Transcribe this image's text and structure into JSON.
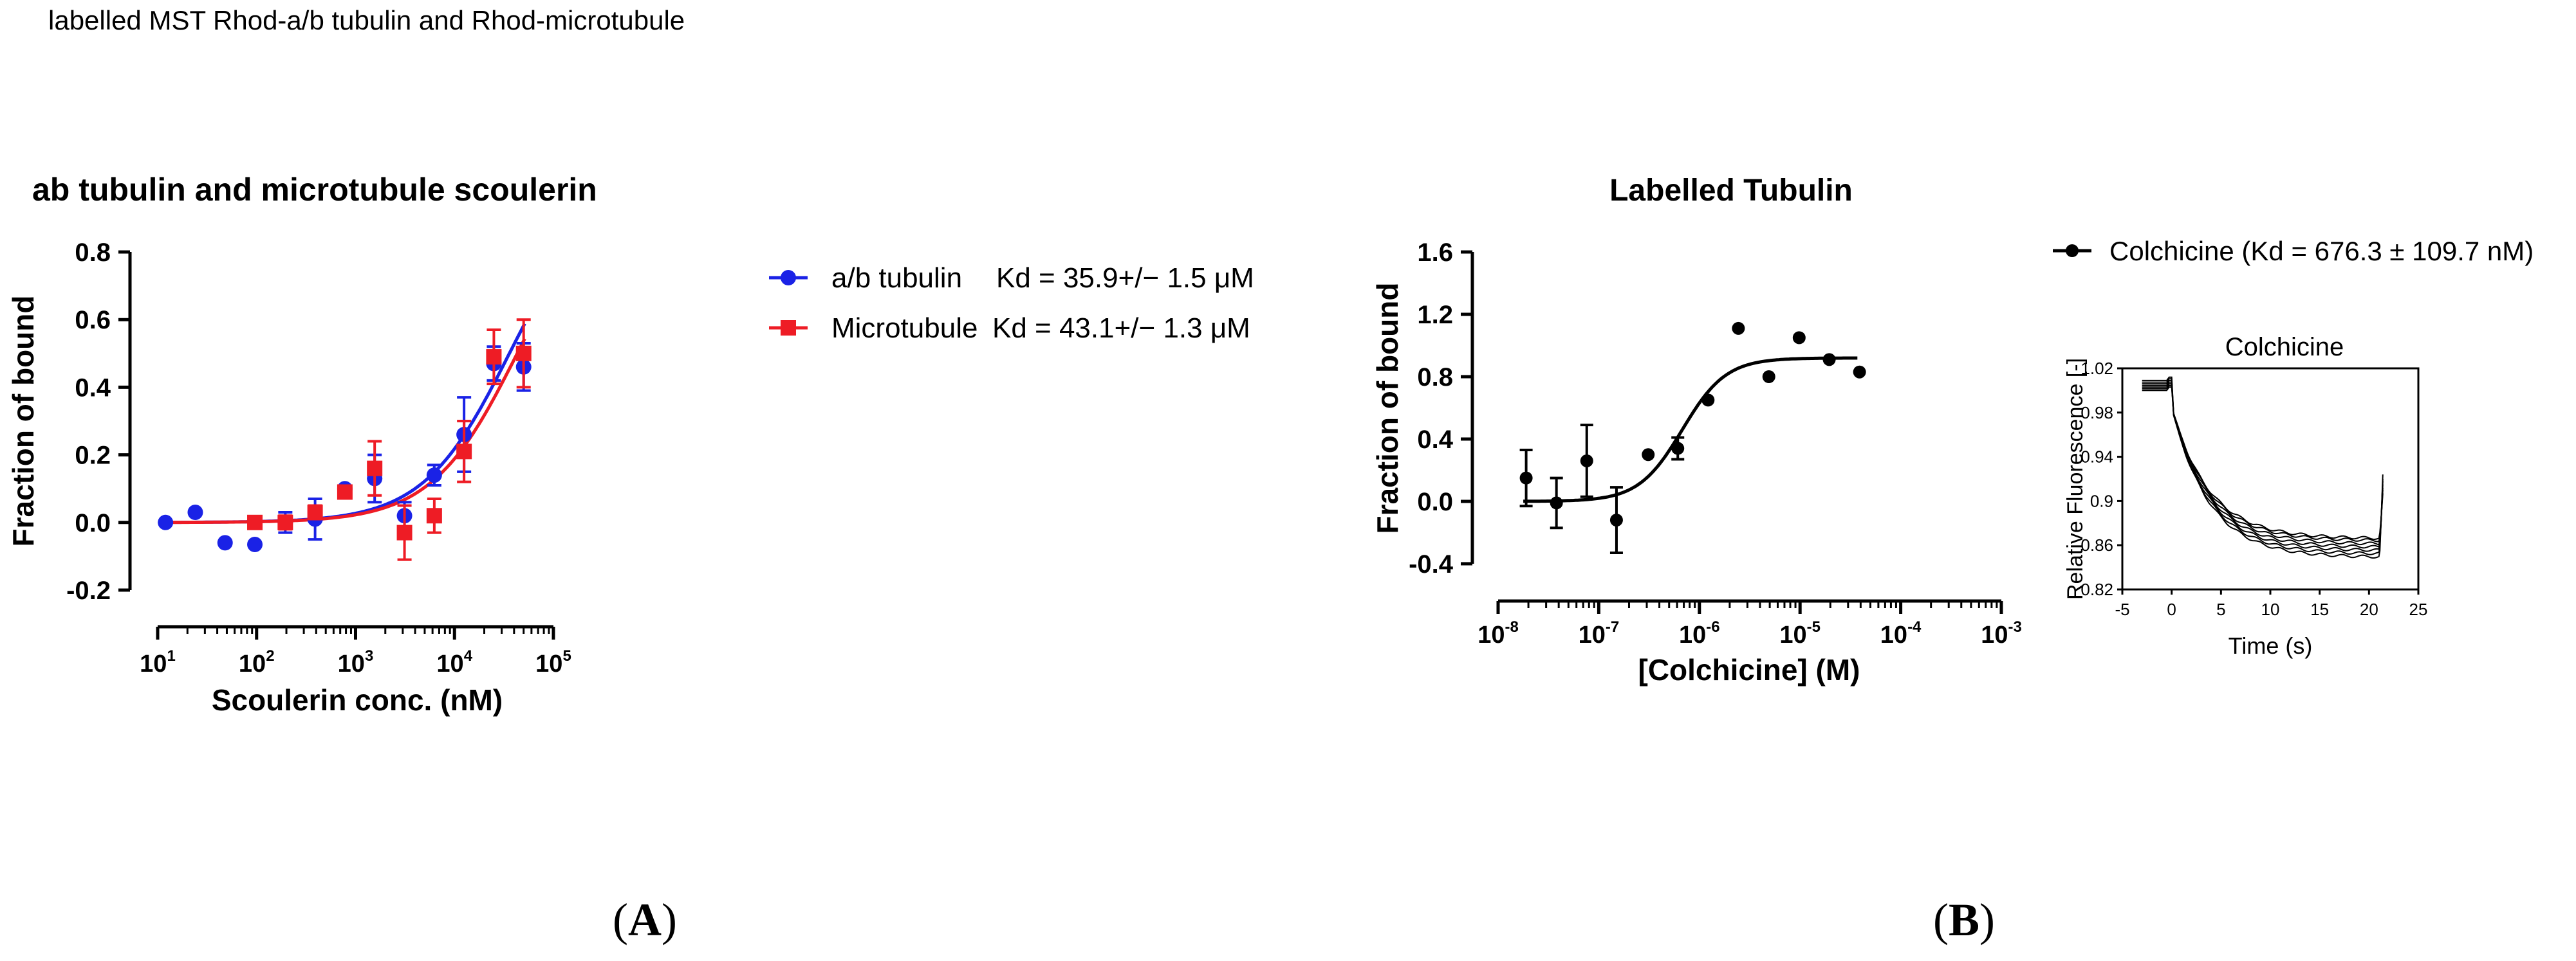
{
  "page": {
    "header": "labelled MST Rhod-a/b tubulin and Rhod-microtubule",
    "panel_a_label": "A",
    "panel_b_label": "B"
  },
  "colors": {
    "tubulin": "#1a22e6",
    "microtubule": "#ee1c25",
    "colchicine": "#000000"
  },
  "chart_data": [
    {
      "type": "scatter",
      "title": "ab tubulin and microtubule scoulerin",
      "xlabel": "Scoulerin conc. (nM)",
      "ylabel": "Fraction of bound",
      "xscale": "log",
      "xlim": [
        10,
        100000
      ],
      "ylim": [
        -0.2,
        0.8
      ],
      "xticks": [
        {
          "v": 10,
          "b": "10",
          "e": "1"
        },
        {
          "v": 100,
          "b": "10",
          "e": "2"
        },
        {
          "v": 1000,
          "b": "10",
          "e": "3"
        },
        {
          "v": 10000,
          "b": "10",
          "e": "4"
        },
        {
          "v": 100000,
          "b": "10",
          "e": "5"
        }
      ],
      "yticks": [
        {
          "v": -0.2,
          "t": "-0.2"
        },
        {
          "v": 0.0,
          "t": "0.0"
        },
        {
          "v": 0.2,
          "t": "0.2"
        },
        {
          "v": 0.4,
          "t": "0.4"
        },
        {
          "v": 0.6,
          "t": "0.6"
        },
        {
          "v": 0.8,
          "t": "0.8"
        }
      ],
      "legend_position": "right",
      "series": [
        {
          "name": "a/b tubulin",
          "kd_label": "Kd = 35.9+/− 1.5 μM",
          "marker": "circle",
          "color": "#1a22e6",
          "points": [
            {
              "x": 12,
              "y": 0.0
            },
            {
              "x": 24,
              "y": 0.03
            },
            {
              "x": 48,
              "y": -0.06
            },
            {
              "x": 96,
              "y": -0.065
            },
            {
              "x": 195,
              "y": 0.0,
              "err": 0.03
            },
            {
              "x": 390,
              "y": 0.01,
              "err": 0.06
            },
            {
              "x": 780,
              "y": 0.1
            },
            {
              "x": 1560,
              "y": 0.13,
              "err": 0.07
            },
            {
              "x": 3125,
              "y": 0.02,
              "err": 0.04
            },
            {
              "x": 6250,
              "y": 0.14,
              "err": 0.03
            },
            {
              "x": 12500,
              "y": 0.26,
              "err": 0.11
            },
            {
              "x": 25000,
              "y": 0.47,
              "err": 0.05
            },
            {
              "x": 50000,
              "y": 0.46,
              "err": 0.07
            }
          ],
          "fit": {
            "kd": 35900
          }
        },
        {
          "name": "Microtubule",
          "kd_label": "Kd = 43.1+/− 1.3 μM",
          "marker": "square",
          "color": "#ee1c25",
          "points": [
            {
              "x": 96,
              "y": 0.0
            },
            {
              "x": 195,
              "y": 0.0,
              "err": 0.02
            },
            {
              "x": 390,
              "y": 0.03,
              "err": 0.02
            },
            {
              "x": 780,
              "y": 0.09
            },
            {
              "x": 1560,
              "y": 0.16,
              "err": 0.08
            },
            {
              "x": 3125,
              "y": -0.03,
              "err": 0.08
            },
            {
              "x": 6250,
              "y": 0.02,
              "err": 0.05
            },
            {
              "x": 12500,
              "y": 0.21,
              "err": 0.09
            },
            {
              "x": 25000,
              "y": 0.49,
              "err": 0.08
            },
            {
              "x": 50000,
              "y": 0.5,
              "err": 0.1
            }
          ],
          "fit": {
            "kd": 43100
          }
        }
      ]
    },
    {
      "type": "scatter",
      "title": "Labelled Tubulin",
      "xlabel": "[Colchicine] (M)",
      "ylabel": "Fraction of bound",
      "xscale": "log",
      "xlim": [
        1e-08,
        0.001
      ],
      "ylim": [
        -0.4,
        1.6
      ],
      "xticks": [
        {
          "v": 1e-08,
          "b": "10",
          "e": "-8"
        },
        {
          "v": 1e-07,
          "b": "10",
          "e": "-7"
        },
        {
          "v": 1e-06,
          "b": "10",
          "e": "-6"
        },
        {
          "v": 1e-05,
          "b": "10",
          "e": "-5"
        },
        {
          "v": 0.0001,
          "b": "10",
          "e": "-4"
        },
        {
          "v": 0.001,
          "b": "10",
          "e": "-3"
        }
      ],
      "yticks": [
        {
          "v": -0.4,
          "t": "-0.4"
        },
        {
          "v": 0.0,
          "t": "0.0"
        },
        {
          "v": 0.4,
          "t": "0.4"
        },
        {
          "v": 0.8,
          "t": "0.8"
        },
        {
          "v": 1.2,
          "t": "1.2"
        },
        {
          "v": 1.6,
          "t": "1.6"
        }
      ],
      "legend_position": "right",
      "series": [
        {
          "name": "Colchicine",
          "legend_label": "Colchicine (Kd = 676.3 ± 109.7 nM)",
          "marker": "circle",
          "color": "#000000",
          "points": [
            {
              "x": 1.9e-08,
              "y": 0.15,
              "err": 0.18
            },
            {
              "x": 3.8e-08,
              "y": -0.01,
              "err": 0.16
            },
            {
              "x": 7.6e-08,
              "y": 0.26,
              "err": 0.23
            },
            {
              "x": 1.5e-07,
              "y": -0.12,
              "err": 0.21
            },
            {
              "x": 3.1e-07,
              "y": 0.3
            },
            {
              "x": 6.1e-07,
              "y": 0.34,
              "err": 0.07
            },
            {
              "x": 1.22e-06,
              "y": 0.65
            },
            {
              "x": 2.44e-06,
              "y": 1.11
            },
            {
              "x": 4.9e-06,
              "y": 0.8
            },
            {
              "x": 9.8e-06,
              "y": 1.05
            },
            {
              "x": 1.95e-05,
              "y": 0.91
            },
            {
              "x": 3.9e-05,
              "y": 0.83
            }
          ],
          "fit": {
            "kd": 6.763e-07,
            "bottom": 0.0,
            "top": 0.92,
            "hill": 2.0
          }
        }
      ]
    },
    {
      "type": "line",
      "title": "Colchicine",
      "xlabel": "Time (s)",
      "ylabel": "Relative Fluorescence [-]",
      "xlim": [
        -5,
        25
      ],
      "ylim": [
        0.82,
        1.02
      ],
      "xticks": [
        {
          "v": -5,
          "t": "-5"
        },
        {
          "v": 0,
          "t": "0"
        },
        {
          "v": 5,
          "t": "5"
        },
        {
          "v": 10,
          "t": "10"
        },
        {
          "v": 15,
          "t": "15"
        },
        {
          "v": 20,
          "t": "20"
        },
        {
          "v": 25,
          "t": "25"
        }
      ],
      "yticks": [
        {
          "v": 0.82,
          "t": "0.82"
        },
        {
          "v": 0.86,
          "t": "0.86"
        },
        {
          "v": 0.9,
          "t": "0.9"
        },
        {
          "v": 0.94,
          "t": "0.94"
        },
        {
          "v": 0.98,
          "t": "0.98"
        },
        {
          "v": 1.02,
          "t": "1.02"
        }
      ],
      "series": [
        {
          "plateau": 0.849,
          "tail": 0.924
        },
        {
          "plateau": 0.852,
          "tail": 0.92
        },
        {
          "plateau": 0.855,
          "tail": 0.915
        },
        {
          "plateau": 0.858,
          "tail": 0.918
        },
        {
          "plateau": 0.861,
          "tail": 0.912
        },
        {
          "plateau": 0.864,
          "tail": 0.91
        },
        {
          "plateau": 0.866,
          "tail": 0.907
        }
      ]
    }
  ]
}
